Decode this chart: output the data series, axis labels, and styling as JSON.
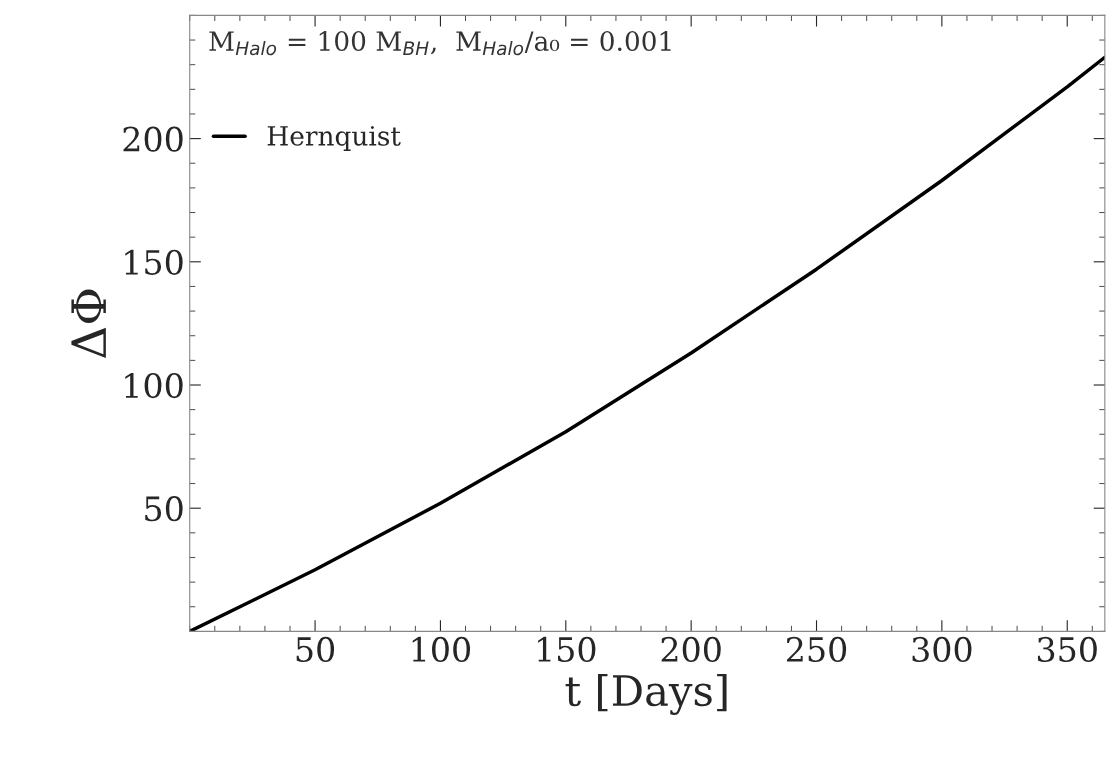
{
  "chart_data": {
    "type": "line",
    "xlabel": "t [Days]",
    "ylabel": "ΔΦ",
    "annotations": [
      "M$_{Halo}$ = 100 M$_{BH}$,  M$_{Halo}$/a₀ = 0.001"
    ],
    "x": [
      0,
      50,
      100,
      150,
      200,
      250,
      300,
      350,
      365
    ],
    "series": [
      {
        "name": "Hernquist",
        "color": "#000000",
        "values": [
          0,
          25,
          52,
          81,
          113,
          147,
          183,
          221,
          233
        ]
      }
    ],
    "xlim": [
      0,
      365
    ],
    "ylim": [
      0,
      250
    ],
    "xticks": [
      50,
      100,
      150,
      200,
      250,
      300,
      350
    ],
    "yticks": [
      50,
      100,
      150,
      200
    ],
    "grid": false,
    "legend": "top left",
    "marker": "none",
    "line_style": "solid"
  }
}
